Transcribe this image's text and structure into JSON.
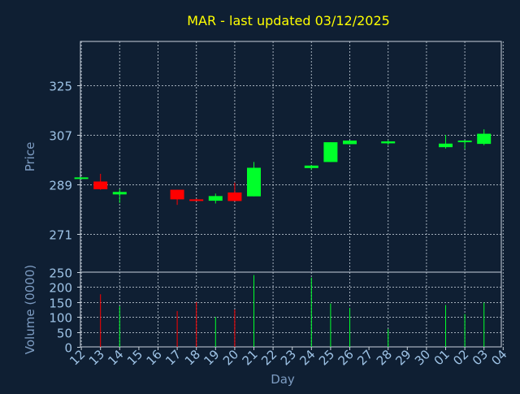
{
  "chart_data": {
    "type": "candlestick",
    "title": "MAR - last updated 03/12/2025",
    "xlabel": "Day",
    "colors": {
      "background": "#0f1f33",
      "title": "#ffff00",
      "axis_text": "#7d9cc2",
      "tick": "#9ec3e6",
      "grid": "#c8d2dc",
      "up": "#00ff2a",
      "down": "#ff0000"
    },
    "x": [
      "12",
      "13",
      "14",
      "15",
      "16",
      "17",
      "18",
      "19",
      "20",
      "21",
      "22",
      "23",
      "24",
      "25",
      "26",
      "27",
      "28",
      "29",
      "30",
      "01",
      "02",
      "03",
      "04"
    ],
    "price_panel": {
      "ylabel": "Price",
      "ylim": [
        257,
        341
      ],
      "yticks": [
        271,
        289,
        307,
        325
      ],
      "candles": [
        {
          "day": "12",
          "open": 291.5,
          "high": 291.5,
          "low": 290.8,
          "close": 291.0,
          "dir": "up"
        },
        {
          "day": "13",
          "open": 290.0,
          "high": 292.8,
          "low": 287.0,
          "close": 287.2,
          "dir": "down"
        },
        {
          "day": "14",
          "open": 285.3,
          "high": 287.2,
          "low": 282.2,
          "close": 286.2,
          "dir": "up"
        },
        {
          "day": "17",
          "open": 287.0,
          "high": 287.0,
          "low": 281.5,
          "close": 283.5,
          "dir": "down"
        },
        {
          "day": "18",
          "open": 283.5,
          "high": 283.7,
          "low": 283.0,
          "close": 283.1,
          "dir": "down"
        },
        {
          "day": "19",
          "open": 283.0,
          "high": 285.6,
          "low": 282.0,
          "close": 284.7,
          "dir": "up"
        },
        {
          "day": "20",
          "open": 286.0,
          "high": 289.6,
          "low": 282.9,
          "close": 282.9,
          "dir": "down"
        },
        {
          "day": "21",
          "open": 284.6,
          "high": 297.1,
          "low": 284.6,
          "close": 295.0,
          "dir": "up"
        },
        {
          "day": "24",
          "open": 294.9,
          "high": 296.0,
          "low": 294.2,
          "close": 295.8,
          "dir": "up"
        },
        {
          "day": "25",
          "open": 297.1,
          "high": 304.3,
          "low": 297.1,
          "close": 304.3,
          "dir": "up"
        },
        {
          "day": "26",
          "open": 303.6,
          "high": 305.0,
          "low": 303.5,
          "close": 304.9,
          "dir": "up"
        },
        {
          "day": "28",
          "open": 303.9,
          "high": 305.1,
          "low": 303.3,
          "close": 304.6,
          "dir": "up"
        },
        {
          "day": "01",
          "open": 302.5,
          "high": 307.0,
          "low": 302.0,
          "close": 303.8,
          "dir": "up"
        },
        {
          "day": "02",
          "open": 304.4,
          "high": 305.0,
          "low": 301.8,
          "close": 304.9,
          "dir": "up"
        },
        {
          "day": "03",
          "open": 303.7,
          "high": 309.0,
          "low": 303.2,
          "close": 307.4,
          "dir": "up"
        }
      ]
    },
    "volume_panel": {
      "ylabel": "Volume (0000)",
      "ylim": [
        0,
        250
      ],
      "yticks": [
        0,
        50,
        100,
        150,
        200,
        250
      ],
      "bars": [
        {
          "day": "13",
          "value": 176,
          "dir": "down"
        },
        {
          "day": "14",
          "value": 136,
          "dir": "up"
        },
        {
          "day": "17",
          "value": 120,
          "dir": "down"
        },
        {
          "day": "18",
          "value": 150,
          "dir": "down"
        },
        {
          "day": "19",
          "value": 100,
          "dir": "up"
        },
        {
          "day": "20",
          "value": 125,
          "dir": "down"
        },
        {
          "day": "21",
          "value": 240,
          "dir": "up"
        },
        {
          "day": "24",
          "value": 232,
          "dir": "up"
        },
        {
          "day": "25",
          "value": 145,
          "dir": "up"
        },
        {
          "day": "26",
          "value": 130,
          "dir": "up"
        },
        {
          "day": "28",
          "value": 60,
          "dir": "up"
        },
        {
          "day": "01",
          "value": 140,
          "dir": "up"
        },
        {
          "day": "02",
          "value": 110,
          "dir": "up"
        },
        {
          "day": "03",
          "value": 148,
          "dir": "up"
        }
      ]
    }
  }
}
